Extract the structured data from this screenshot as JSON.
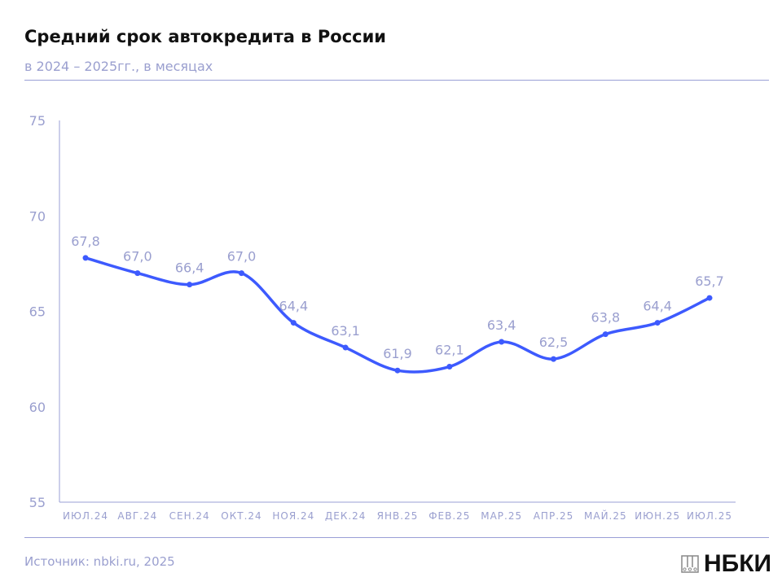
{
  "header": {
    "title": "Средний срок автокредита в России",
    "subtitle": "в 2024 – 2025гг., в месяцах"
  },
  "footer": {
    "source": "Источник: nbki.ru, 2025",
    "logo_text": "НБКИ"
  },
  "colors": {
    "line": "#3d5afe",
    "axis": "#9a9fd6",
    "text": "#9a9fcf"
  },
  "chart_data": {
    "type": "line",
    "title": "Средний срок автокредита в России",
    "subtitle": "в 2024 – 2025гг., в месяцах",
    "categories": [
      "ИЮЛ.24",
      "АВГ.24",
      "СЕН.24",
      "ОКТ.24",
      "НОЯ.24",
      "ДЕК.24",
      "ЯНВ.25",
      "ФЕВ.25",
      "МАР.25",
      "АПР.25",
      "МАЙ.25",
      "ИЮН.25",
      "ИЮЛ.25"
    ],
    "values": [
      67.8,
      67.0,
      66.4,
      67.0,
      64.4,
      63.1,
      61.9,
      62.1,
      63.4,
      62.5,
      63.8,
      64.4,
      65.7
    ],
    "data_labels": [
      "67,8",
      "67,0",
      "66,4",
      "67,0",
      "64,4",
      "63,1",
      "61,9",
      "62,1",
      "63,4",
      "62,5",
      "63,8",
      "64,4",
      "65,7"
    ],
    "ylim": [
      55,
      75
    ],
    "yticks": [
      55,
      60,
      65,
      70,
      75
    ],
    "grid": false,
    "smooth": true
  }
}
